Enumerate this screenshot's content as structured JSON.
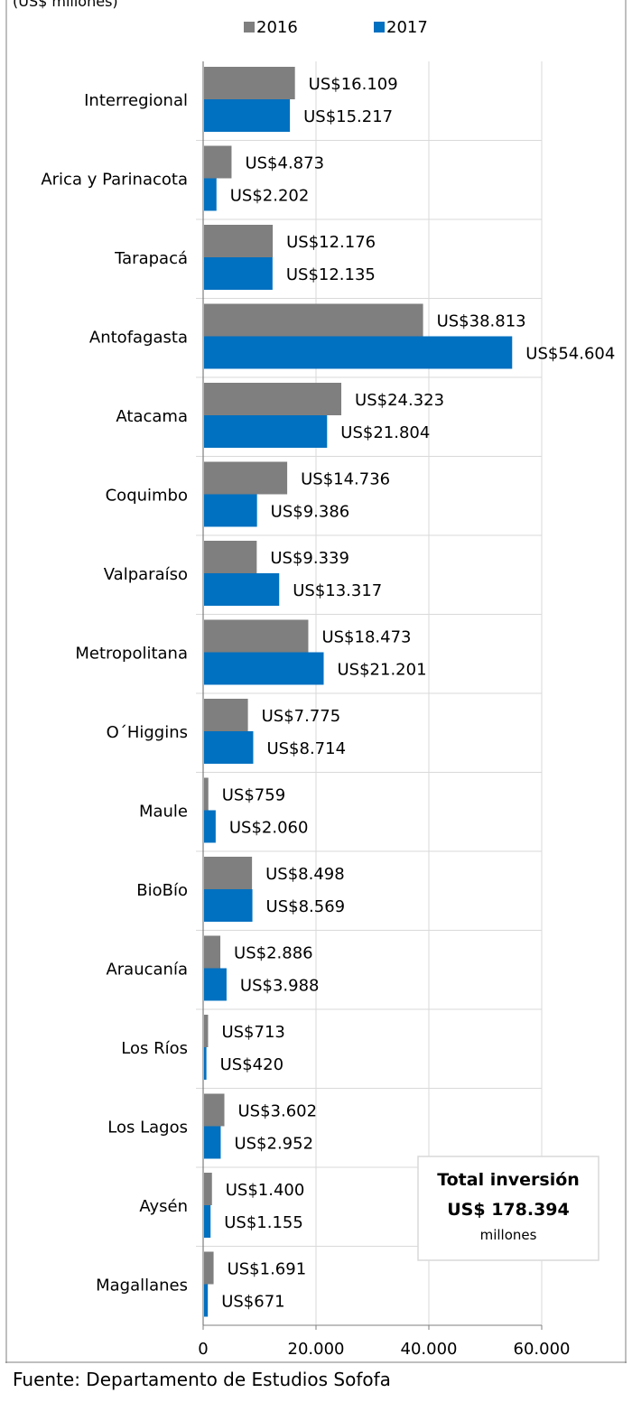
{
  "header_fragment": "(US$ millones)",
  "source": "Fuente: Departamento de Estudios Sofofa",
  "chart_data": {
    "type": "bar",
    "orientation": "horizontal",
    "title": "",
    "xlabel": "",
    "ylabel": "",
    "xlim": [
      0,
      60000
    ],
    "x_ticks": [
      "0",
      "20.000",
      "40.000",
      "60.000"
    ],
    "grid": true,
    "legend_position": "top",
    "categories": [
      "Interregional",
      "Arica y Parinacota",
      "Tarapacá",
      "Antofagasta",
      "Atacama",
      "Coquimbo",
      "Valparaíso",
      "Metropolitana",
      "O´Higgins",
      "Maule",
      "BioBío",
      "Araucanía",
      "Los Ríos",
      "Los Lagos",
      "Aysén",
      "Magallanes"
    ],
    "series": [
      {
        "name": "2016",
        "color": "#7f7f7f",
        "values": [
          16109,
          4873,
          12176,
          38813,
          24323,
          14736,
          9339,
          18473,
          7775,
          759,
          8498,
          2886,
          713,
          3602,
          1400,
          1691
        ],
        "labels": [
          "US$16.109",
          "US$4.873",
          "US$12.176",
          "US$38.813",
          "US$24.323",
          "US$14.736",
          "US$9.339",
          "US$18.473",
          "US$7.775",
          "US$759",
          "US$8.498",
          "US$2.886",
          "US$713",
          "US$3.602",
          "US$1.400",
          "US$1.691"
        ]
      },
      {
        "name": "2017",
        "color": "#0070c0",
        "values": [
          15217,
          2202,
          12135,
          54604,
          21804,
          9386,
          13317,
          21201,
          8714,
          2060,
          8569,
          3988,
          420,
          2952,
          1155,
          671
        ],
        "labels": [
          "US$15.217",
          "US$2.202",
          "US$12.135",
          "US$54.604",
          "US$21.804",
          "US$9.386",
          "US$13.317",
          "US$21.201",
          "US$8.714",
          "US$2.060",
          "US$8.569",
          "US$3.988",
          "US$420",
          "US$2.952",
          "US$1.155",
          "US$671"
        ]
      }
    ],
    "annotation": {
      "line1": "Total inversión",
      "line2": "US$ 178.394",
      "line3": "millones"
    }
  }
}
